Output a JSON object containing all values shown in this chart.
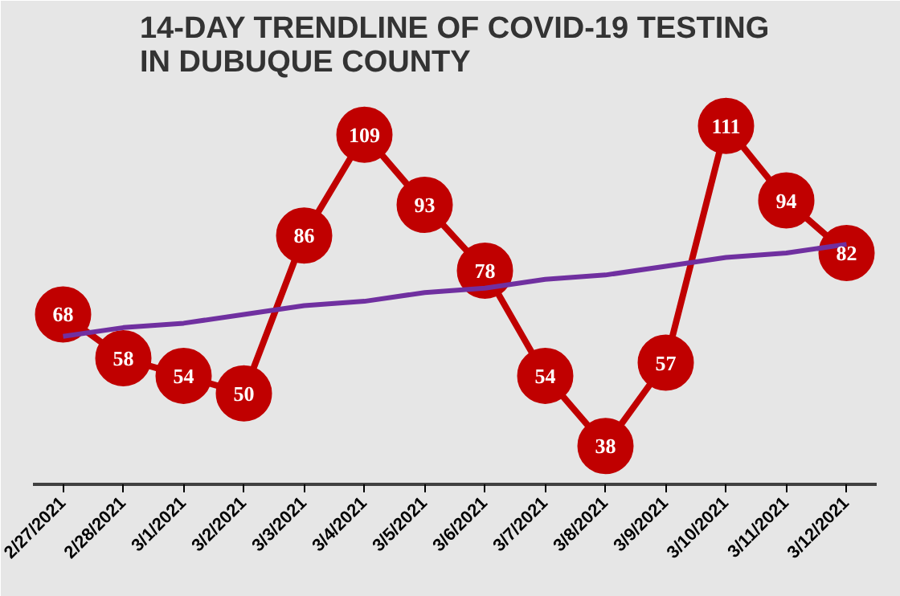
{
  "chart_data": {
    "type": "line",
    "title": "14-DAY TRENDLINE OF COVID-19 TESTING\nIN DUBUQUE COUNTY",
    "categories": [
      "2/27/2021",
      "2/28/2021",
      "3/1/2021",
      "3/2/2021",
      "3/3/2021",
      "3/4/2021",
      "3/5/2021",
      "3/6/2021",
      "3/7/2021",
      "3/8/2021",
      "3/9/2021",
      "3/10/2021",
      "3/11/2021",
      "3/12/2021"
    ],
    "series": [
      {
        "color": "#c00000",
        "marker": "circle",
        "values": [
          68,
          58,
          54,
          50,
          86,
          109,
          93,
          78,
          54,
          38,
          57,
          111,
          94,
          82
        ],
        "value_labels": [
          "68",
          "58",
          "54",
          "50",
          "86",
          "109",
          "93",
          "78",
          "54",
          "38",
          "57",
          "111",
          "94",
          "82"
        ]
      },
      {
        "color": "#7030a0",
        "marker": "none",
        "values": [
          63,
          65,
          66,
          68,
          70,
          71,
          73,
          74,
          76,
          77,
          79,
          81,
          82,
          84
        ]
      }
    ],
    "grid": false,
    "tick_labels": "x"
  }
}
